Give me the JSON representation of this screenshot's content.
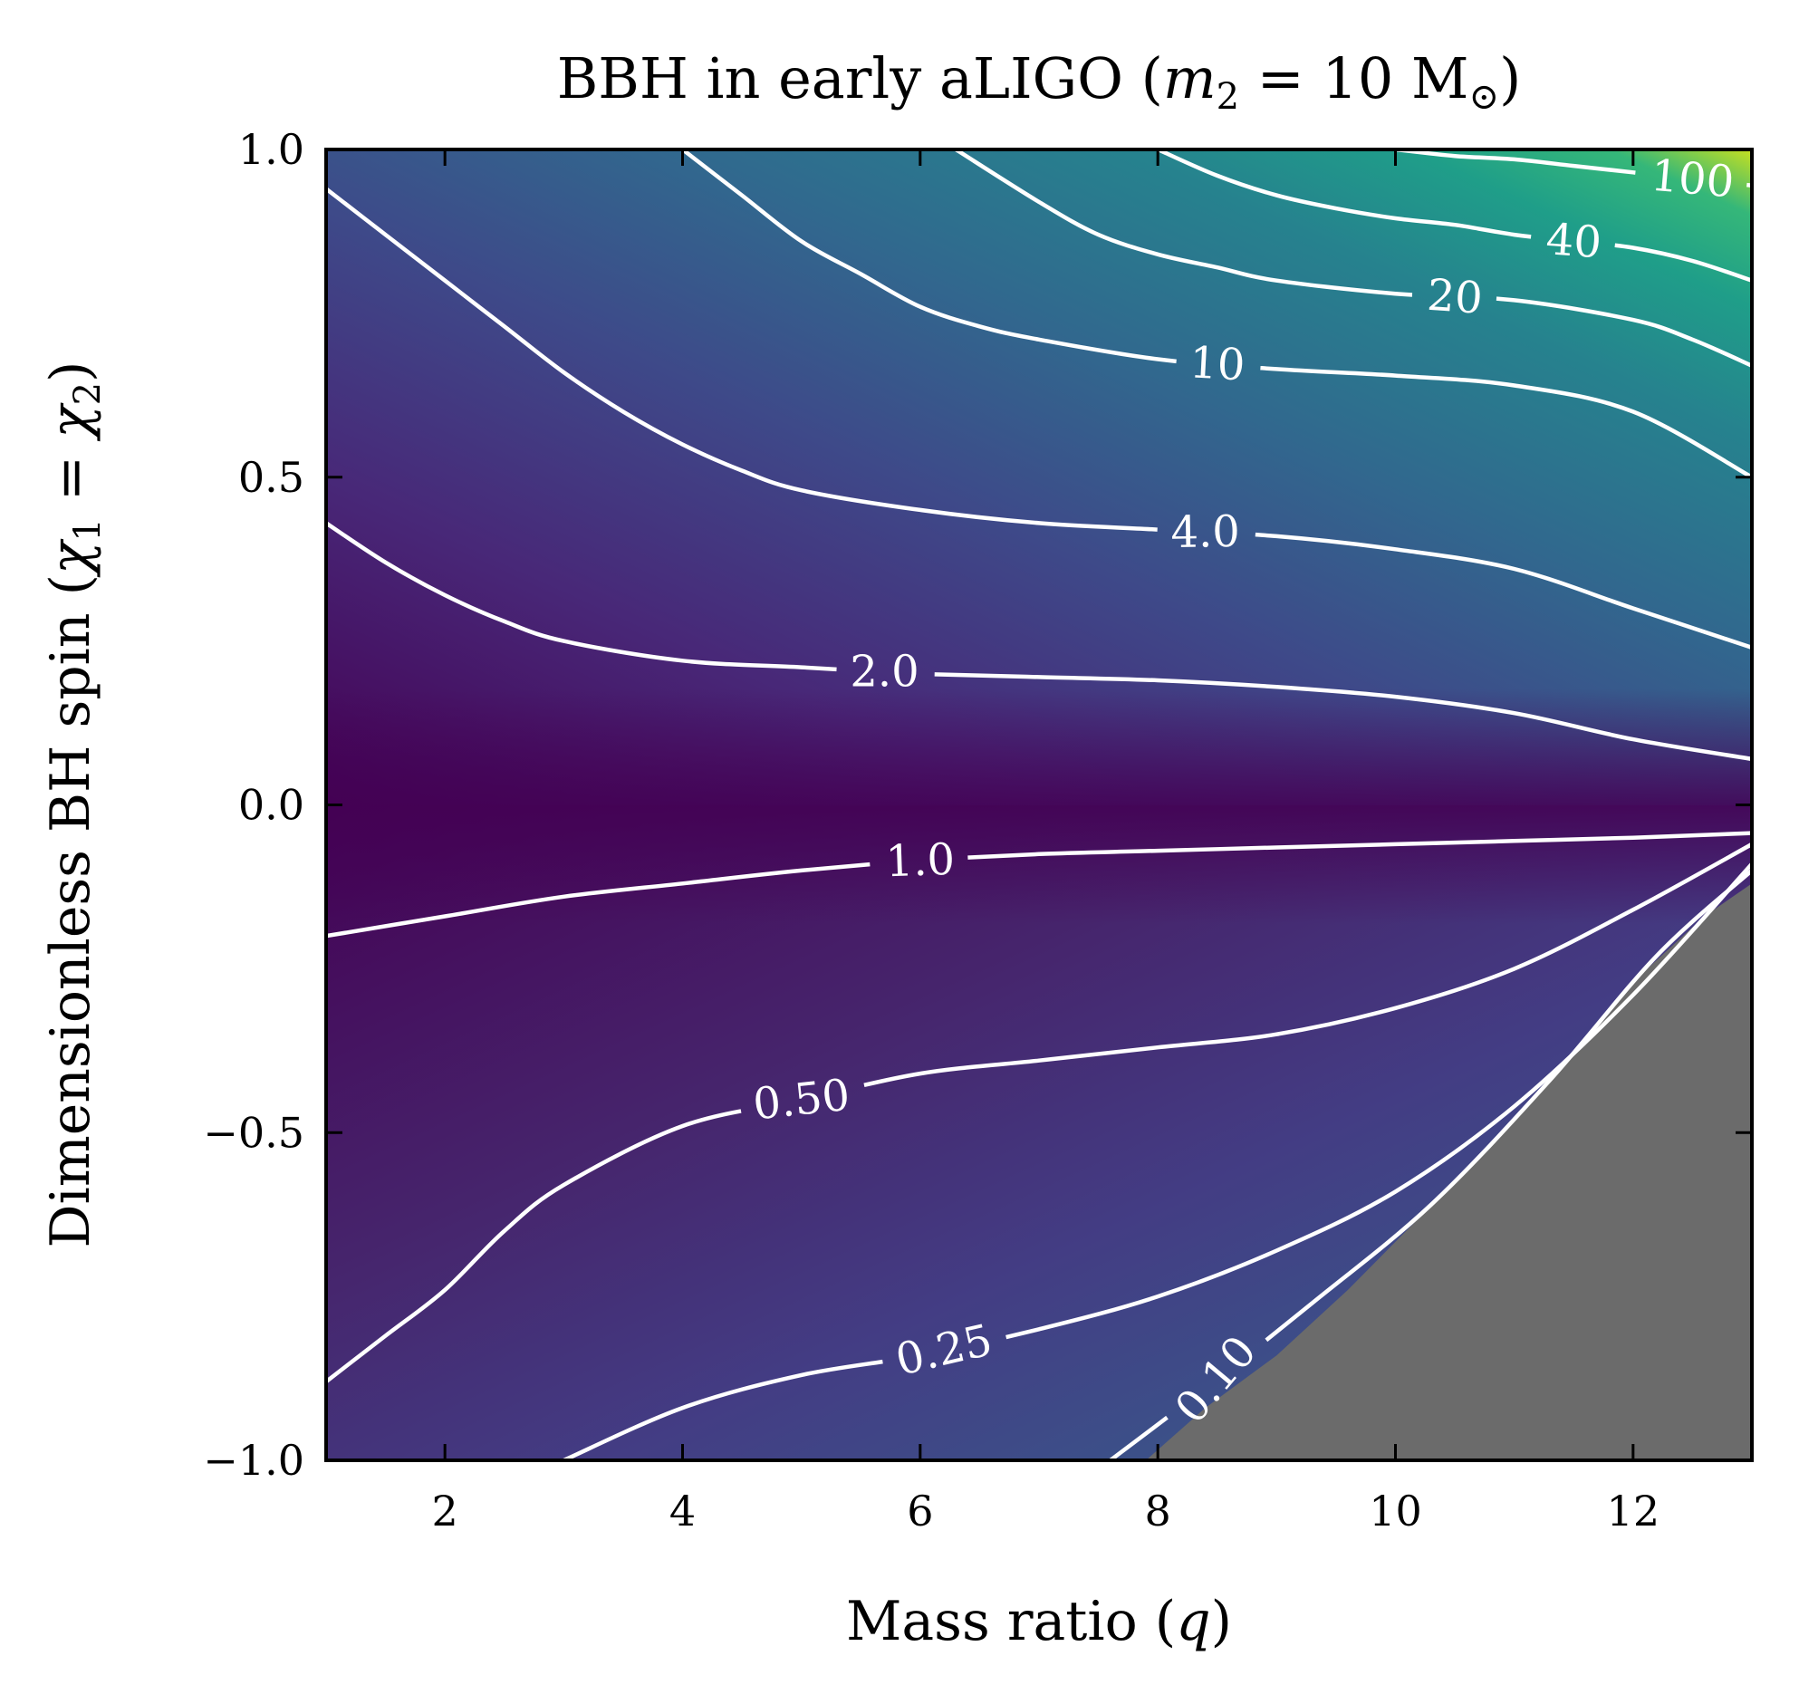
{
  "chart_data": {
    "type": "heatmap",
    "title": "BBH in early aLIGO (m₂ = 10 M⊙)",
    "xlabel": "Mass ratio (q)",
    "ylabel": "Dimensionless BH spin (χ₁ = χ₂)",
    "xlim": [
      1,
      13
    ],
    "ylim": [
      -1.0,
      1.0
    ],
    "xticks": [
      2,
      4,
      6,
      8,
      10,
      12
    ],
    "yticks": [
      -1.0,
      -0.5,
      0.0,
      0.5,
      1.0
    ],
    "xtick_labels": [
      "2",
      "4",
      "6",
      "8",
      "10",
      "12"
    ],
    "ytick_labels": [
      "−1.0",
      "−0.5",
      "0.0",
      "0.5",
      "1.0"
    ],
    "colormap": "viridis",
    "excluded_region_color": "#6b6b6b",
    "contour_color": "#ffffff",
    "contours": [
      {
        "level": 0.1,
        "label": "0.10",
        "points": [
          [
            7.6,
            -1.0
          ],
          [
            8.4,
            -0.89
          ],
          [
            9.3,
            -0.76
          ],
          [
            10.3,
            -0.61
          ],
          [
            11.3,
            -0.42
          ],
          [
            12.2,
            -0.23
          ],
          [
            13.0,
            -0.1
          ]
        ]
      },
      {
        "level": 0.25,
        "label": "0.25",
        "points": [
          [
            3.0,
            -1.0
          ],
          [
            4.0,
            -0.92
          ],
          [
            5.0,
            -0.87
          ],
          [
            6.0,
            -0.84
          ],
          [
            7.0,
            -0.8
          ],
          [
            8.0,
            -0.75
          ],
          [
            9.0,
            -0.68
          ],
          [
            10.0,
            -0.59
          ],
          [
            11.0,
            -0.46
          ],
          [
            12.0,
            -0.29
          ],
          [
            13.0,
            -0.09
          ]
        ]
      },
      {
        "level": 0.5,
        "label": "0.50",
        "points": [
          [
            1.0,
            -0.88
          ],
          [
            1.5,
            -0.81
          ],
          [
            2.0,
            -0.74
          ],
          [
            2.5,
            -0.65
          ],
          [
            3.0,
            -0.58
          ],
          [
            4.0,
            -0.49
          ],
          [
            5.0,
            -0.45
          ],
          [
            6.0,
            -0.41
          ],
          [
            7.0,
            -0.39
          ],
          [
            8.0,
            -0.37
          ],
          [
            9.0,
            -0.35
          ],
          [
            10.0,
            -0.31
          ],
          [
            11.0,
            -0.25
          ],
          [
            12.0,
            -0.16
          ],
          [
            13.0,
            -0.06
          ]
        ]
      },
      {
        "level": 1.0,
        "label": "1.0",
        "points": [
          [
            1.0,
            -0.2
          ],
          [
            2.0,
            -0.17
          ],
          [
            3.0,
            -0.14
          ],
          [
            4.0,
            -0.12
          ],
          [
            5.0,
            -0.1
          ],
          [
            6.0,
            -0.085
          ],
          [
            7.0,
            -0.075
          ],
          [
            8.0,
            -0.07
          ],
          [
            9.0,
            -0.065
          ],
          [
            10.0,
            -0.06
          ],
          [
            11.0,
            -0.055
          ],
          [
            12.0,
            -0.05
          ],
          [
            13.0,
            -0.043
          ]
        ]
      },
      {
        "level": 2.0,
        "label": "2.0",
        "points": [
          [
            1.0,
            0.43
          ],
          [
            1.5,
            0.37
          ],
          [
            2.0,
            0.32
          ],
          [
            2.5,
            0.28
          ],
          [
            3.0,
            0.25
          ],
          [
            4.0,
            0.22
          ],
          [
            5.0,
            0.21
          ],
          [
            6.0,
            0.2
          ],
          [
            7.0,
            0.195
          ],
          [
            8.0,
            0.19
          ],
          [
            9.0,
            0.18
          ],
          [
            10.0,
            0.165
          ],
          [
            11.0,
            0.14
          ],
          [
            12.0,
            0.1
          ],
          [
            13.0,
            0.07
          ]
        ]
      },
      {
        "level": 4.0,
        "label": "4.0",
        "points": [
          [
            1.0,
            0.94
          ],
          [
            1.5,
            0.87
          ],
          [
            2.0,
            0.8
          ],
          [
            2.5,
            0.73
          ],
          [
            3.0,
            0.66
          ],
          [
            3.5,
            0.6
          ],
          [
            4.0,
            0.55
          ],
          [
            4.5,
            0.51
          ],
          [
            5.0,
            0.48
          ],
          [
            6.0,
            0.45
          ],
          [
            7.0,
            0.43
          ],
          [
            8.0,
            0.42
          ],
          [
            9.0,
            0.41
          ],
          [
            10.0,
            0.39
          ],
          [
            11.0,
            0.36
          ],
          [
            12.0,
            0.3
          ],
          [
            13.0,
            0.24
          ]
        ]
      },
      {
        "level": 10,
        "label": "10",
        "points": [
          [
            4.0,
            1.0
          ],
          [
            4.5,
            0.93
          ],
          [
            5.0,
            0.86
          ],
          [
            5.5,
            0.81
          ],
          [
            6.0,
            0.76
          ],
          [
            6.5,
            0.73
          ],
          [
            7.0,
            0.71
          ],
          [
            8.0,
            0.68
          ],
          [
            9.0,
            0.665
          ],
          [
            10.0,
            0.655
          ],
          [
            11.0,
            0.64
          ],
          [
            12.0,
            0.6
          ],
          [
            13.0,
            0.5
          ]
        ]
      },
      {
        "level": 20,
        "label": "20",
        "points": [
          [
            6.3,
            1.0
          ],
          [
            7.0,
            0.92
          ],
          [
            7.5,
            0.87
          ],
          [
            8.0,
            0.84
          ],
          [
            8.5,
            0.82
          ],
          [
            9.0,
            0.8
          ],
          [
            10.0,
            0.78
          ],
          [
            11.0,
            0.77
          ],
          [
            12.0,
            0.74
          ],
          [
            12.5,
            0.71
          ],
          [
            13.0,
            0.67
          ]
        ]
      },
      {
        "level": 40,
        "label": "40",
        "points": [
          [
            8.0,
            1.0
          ],
          [
            8.5,
            0.96
          ],
          [
            9.0,
            0.93
          ],
          [
            9.5,
            0.91
          ],
          [
            10.0,
            0.895
          ],
          [
            10.5,
            0.885
          ],
          [
            11.0,
            0.87
          ],
          [
            11.5,
            0.86
          ],
          [
            12.0,
            0.85
          ],
          [
            12.5,
            0.83
          ],
          [
            13.0,
            0.8
          ]
        ]
      },
      {
        "level": 100,
        "label": "100",
        "points": [
          [
            10.0,
            1.0
          ],
          [
            10.5,
            0.99
          ],
          [
            11.0,
            0.985
          ],
          [
            11.5,
            0.975
          ],
          [
            12.0,
            0.965
          ],
          [
            12.5,
            0.955
          ],
          [
            13.0,
            0.945
          ]
        ]
      }
    ],
    "excluded_region_boundary": [
      [
        7.9,
        -1.0
      ],
      [
        8.4,
        -0.92
      ],
      [
        9.0,
        -0.84
      ],
      [
        9.6,
        -0.74
      ],
      [
        10.2,
        -0.63
      ],
      [
        10.8,
        -0.52
      ],
      [
        11.4,
        -0.4
      ],
      [
        12.0,
        -0.27
      ],
      [
        12.6,
        -0.17
      ],
      [
        13.0,
        -0.12
      ]
    ]
  },
  "text": {
    "title_main": "BBH in early aLIGO (",
    "title_m": "m",
    "title_sub2": "2",
    "title_eq": " = 10 M",
    "title_sun": "⊙",
    "title_close": ")",
    "ylabel_main": "Dimensionless BH spin (",
    "ylabel_chi1": "χ",
    "ylabel_sub1": "1",
    "ylabel_eq": " = ",
    "ylabel_chi2": "χ",
    "ylabel_sub2": "2",
    "ylabel_close": ")",
    "xlabel_main": "Mass ratio (",
    "xlabel_q": "q",
    "xlabel_close": ")"
  }
}
